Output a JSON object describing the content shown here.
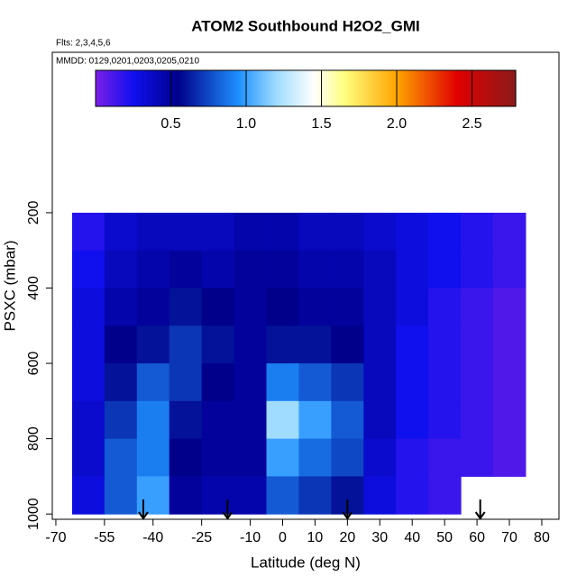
{
  "chart_data": {
    "type": "heatmap",
    "title": "ATOM2 Southbound H2O2_GMI",
    "subtitle": "Flts: 2,3,4,5,6",
    "annotation": "MMDD: 0129,0201,0203,0205,0210",
    "x_label": "Latitude (deg N)",
    "y_label": "PSXC (mbar)",
    "xlim": [
      -71.1,
      85.3
    ],
    "xticks": [
      -70,
      -55,
      -40,
      -25,
      -10,
      0,
      10,
      20,
      30,
      40,
      50,
      60,
      70,
      80
    ],
    "ylim": [
      -226,
      1014
    ],
    "yticks": [
      200,
      400,
      600,
      800,
      1000
    ],
    "x_edges": [
      -65,
      -55,
      -45,
      -35,
      -25,
      -15,
      -5,
      5,
      15,
      25,
      35,
      45,
      55,
      65,
      75
    ],
    "y_edges": [
      200,
      300,
      400,
      500,
      600,
      700,
      800,
      900,
      1000
    ],
    "z": [
      [
        0.2,
        0.35,
        0.4,
        0.4,
        0.4,
        0.45,
        0.45,
        0.4,
        0.4,
        0.35,
        0.3,
        0.25,
        0.2,
        0.15
      ],
      [
        0.25,
        0.4,
        0.45,
        0.5,
        0.45,
        0.5,
        0.5,
        0.45,
        0.45,
        0.4,
        0.3,
        0.25,
        0.2,
        0.15
      ],
      [
        0.3,
        0.45,
        0.5,
        0.6,
        0.55,
        0.5,
        0.55,
        0.5,
        0.5,
        0.4,
        0.3,
        0.2,
        0.15,
        0.1
      ],
      [
        0.3,
        0.55,
        0.6,
        0.7,
        0.6,
        0.5,
        0.6,
        0.6,
        0.55,
        0.4,
        0.25,
        0.2,
        0.15,
        0.1
      ],
      [
        0.3,
        0.6,
        0.8,
        0.7,
        0.55,
        0.5,
        0.9,
        0.8,
        0.7,
        0.4,
        0.25,
        0.2,
        0.15,
        0.1
      ],
      [
        0.35,
        0.7,
        0.9,
        0.6,
        0.5,
        0.5,
        1.2,
        1.0,
        0.8,
        0.4,
        0.25,
        0.2,
        0.15,
        0.1
      ],
      [
        0.35,
        0.8,
        0.9,
        0.55,
        0.5,
        0.5,
        1.0,
        0.85,
        0.75,
        0.35,
        0.2,
        0.15,
        0.15,
        0.1
      ],
      [
        0.3,
        0.8,
        1.0,
        0.5,
        0.45,
        0.45,
        0.8,
        0.7,
        0.6,
        0.3,
        0.2,
        0.15,
        null,
        null
      ]
    ],
    "clim": [
      0,
      2.79
    ],
    "cticks": [
      0.5,
      {
        "value": 1,
        "label": "1.0"
      },
      1.5,
      {
        "value": 2,
        "label": "2.0"
      },
      2.5
    ],
    "colorscale": [
      [
        0,
        "#7b1fe8"
      ],
      [
        0.25,
        "#1010ee"
      ],
      [
        0.55,
        "#00008b"
      ],
      [
        0.95,
        "#1e90ff"
      ],
      [
        1.2,
        "#9fdcff"
      ],
      [
        1.45,
        "#ffffff"
      ],
      [
        1.65,
        "#ffff80"
      ],
      [
        2.0,
        "#ffa500"
      ],
      [
        2.4,
        "#e00000"
      ],
      [
        2.79,
        "#8b1a1a"
      ]
    ],
    "arrows": [
      -43,
      -17,
      20,
      61
    ]
  }
}
